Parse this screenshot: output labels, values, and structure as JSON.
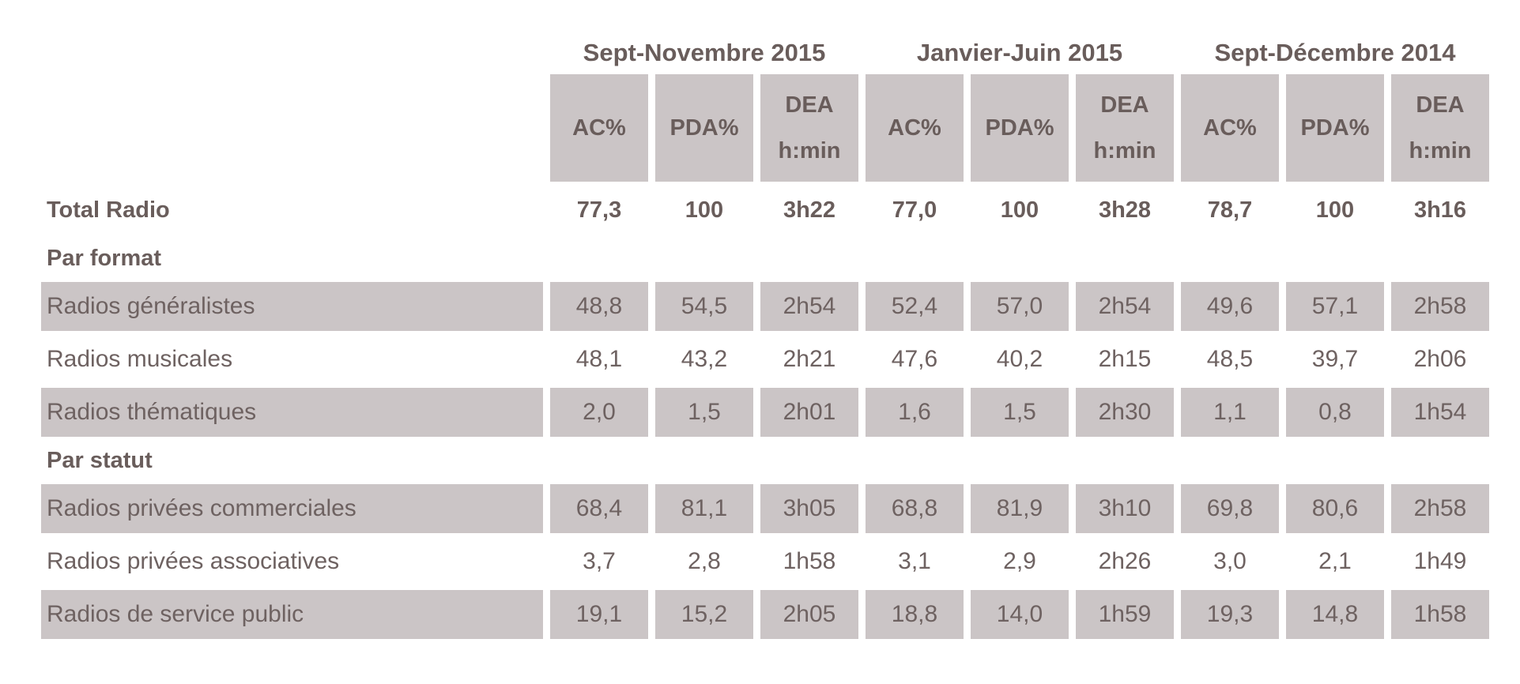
{
  "colors": {
    "cell_bg": "#cbc5c6",
    "text": "#6e6261",
    "text_bold": "#695d5b",
    "page_bg": "#ffffff"
  },
  "table": {
    "periods": [
      "Sept-Novembre 2015",
      "Janvier-Juin 2015",
      "Sept-Décembre 2014"
    ],
    "column_headers": [
      "AC%",
      "PDA%",
      "DEA\nh:min",
      "AC%",
      "PDA%",
      "DEA\nh:min",
      "AC%",
      "PDA%",
      "DEA\nh:min"
    ],
    "rows": [
      {
        "label": "Total Radio",
        "type": "total",
        "values": [
          "77,3",
          "100",
          "3h22",
          "77,0",
          "100",
          "3h28",
          "78,7",
          "100",
          "3h16"
        ]
      },
      {
        "label": "Par format",
        "type": "section",
        "values": []
      },
      {
        "label": "Radios généralistes",
        "type": "shaded",
        "values": [
          "48,8",
          "54,5",
          "2h54",
          "52,4",
          "57,0",
          "2h54",
          "49,6",
          "57,1",
          "2h58"
        ]
      },
      {
        "label": "Radios musicales",
        "type": "plain",
        "values": [
          "48,1",
          "43,2",
          "2h21",
          "47,6",
          "40,2",
          "2h15",
          "48,5",
          "39,7",
          "2h06"
        ]
      },
      {
        "label": "Radios thématiques",
        "type": "shaded",
        "values": [
          "2,0",
          "1,5",
          "2h01",
          "1,6",
          "1,5",
          "2h30",
          "1,1",
          "0,8",
          "1h54"
        ]
      },
      {
        "label": "Par statut",
        "type": "section",
        "values": []
      },
      {
        "label": "Radios privées commerciales",
        "type": "shaded",
        "values": [
          "68,4",
          "81,1",
          "3h05",
          "68,8",
          "81,9",
          "3h10",
          "69,8",
          "80,6",
          "2h58"
        ]
      },
      {
        "label": "Radios privées associatives",
        "type": "plain",
        "values": [
          "3,7",
          "2,8",
          "1h58",
          "3,1",
          "2,9",
          "2h26",
          "3,0",
          "2,1",
          "1h49"
        ]
      },
      {
        "label": "Radios de service public",
        "type": "shaded",
        "values": [
          "19,1",
          "15,2",
          "2h05",
          "18,8",
          "14,0",
          "1h59",
          "19,3",
          "14,8",
          "1h58"
        ]
      }
    ]
  }
}
